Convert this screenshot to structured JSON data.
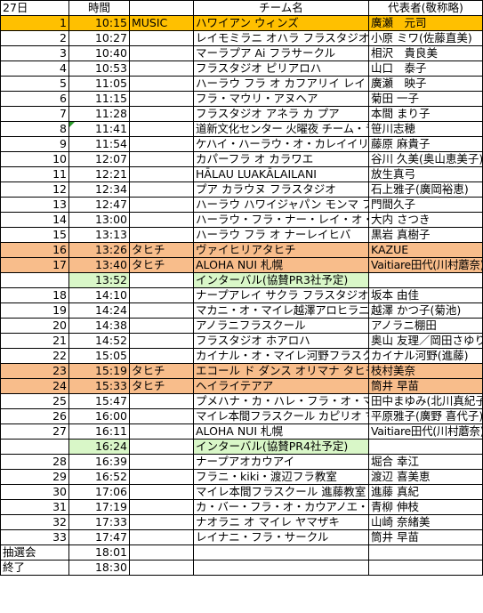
{
  "header": {
    "day": "27日",
    "time": "時間",
    "team": "チーム名",
    "rep": "代表者(敬称略)"
  },
  "colors": {
    "orange_highlight": "#ffc000",
    "tahichi": "#f8bd8b",
    "interval": "#d9f7c8"
  },
  "rows": [
    {
      "no": "1",
      "time": "10:15",
      "cat": "MUSIC",
      "team": "ハワイアン ウィンズ",
      "rep": "廣瀬　元司",
      "style": "top",
      "tsize": "",
      "rsize": ""
    },
    {
      "no": "2",
      "time": "10:27",
      "cat": "",
      "team": "レイモミラニ オハラ フラスタジオ",
      "rep": "小原 ミワ(佐藤直美)",
      "style": "",
      "tsize": "",
      "rsize": "sm"
    },
    {
      "no": "3",
      "time": "10:40",
      "cat": "",
      "team": "マーラプア Ai フラサークル",
      "rep": "相沢　貴良美",
      "style": "",
      "tsize": "",
      "rsize": ""
    },
    {
      "no": "4",
      "time": "10:53",
      "cat": "",
      "team": "フラスタジオ  ピリアロハ",
      "rep": "山口　泰子",
      "style": "",
      "tsize": "",
      "rsize": ""
    },
    {
      "no": "5",
      "time": "11:05",
      "cat": "",
      "team": "ハーラウ フラ オ カフアリイ レイ オハナ",
      "rep": "廣瀬　映子",
      "style": "",
      "tsize": "sm",
      "rsize": ""
    },
    {
      "no": "6",
      "time": "11:15",
      "cat": "",
      "team": "フラ・マウリ・アヌヘア",
      "rep": "菊田 一子",
      "style": "",
      "tsize": "",
      "rsize": ""
    },
    {
      "no": "7",
      "time": "11:28",
      "cat": "",
      "team": "フラスタジオ アネラ カ プア",
      "rep": "本間 まり子",
      "style": "",
      "tsize": "",
      "rsize": ""
    },
    {
      "no": "8",
      "time": "11:41",
      "cat": "",
      "team": "道新文化センター 火曜夜 チーム・ラウハラ",
      "rep": "笹川志穂",
      "style": "mark",
      "tsize": "xs",
      "rsize": ""
    },
    {
      "no": "9",
      "time": "11:54",
      "cat": "",
      "team": "ケハイ・ハーラウ・オ・カレイイリマオカラニ・パー・オ・ラパ・カヒコ",
      "rep": "藤原 麻貴子",
      "style": "",
      "tsize": "xs",
      "rsize": ""
    },
    {
      "no": "10",
      "time": "12:07",
      "cat": "",
      "team": "カパーフラ オ カラワエ",
      "rep": "谷川 久美(奥山恵美子)",
      "style": "",
      "tsize": "",
      "rsize": "sm"
    },
    {
      "no": "11",
      "time": "12:21",
      "cat": "",
      "team": "HĀLAU LUAKĀLAILANI",
      "rep": "放生真弓",
      "style": "",
      "tsize": "",
      "rsize": ""
    },
    {
      "no": "12",
      "time": "12:34",
      "cat": "",
      "team": "プア カラウヌ フラスタジオ",
      "rep": "石上雅子(廣岡裕恵)",
      "style": "",
      "tsize": "",
      "rsize": "sm"
    },
    {
      "no": "13",
      "time": "12:47",
      "cat": "",
      "team": "ハーラウ ハワイジャパン モンマ フラ グループ",
      "rep": "門間久子",
      "style": "",
      "tsize": "sm",
      "rsize": ""
    },
    {
      "no": "14",
      "time": "13:00",
      "cat": "",
      "team": "ハーラウ・フラ・ナー・レイ・オ・ホクロア",
      "rep": "大内 さつき",
      "style": "",
      "tsize": "",
      "rsize": ""
    },
    {
      "no": "15",
      "time": "13:13",
      "cat": "",
      "team": "ハーラウ フラ オ ナーレイヒバ",
      "rep": "黒岩 真樹子",
      "style": "",
      "tsize": "",
      "rsize": ""
    },
    {
      "no": "16",
      "time": "13:26",
      "cat": "タヒチ",
      "team": "ヴァイヒリアタヒチ",
      "rep": "KAZUE",
      "style": "orange",
      "tsize": "",
      "rsize": ""
    },
    {
      "no": "17",
      "time": "13:40",
      "cat": "タヒチ",
      "team": "ALOHA NUI 札幌",
      "rep": "Vaitiare田代(川村蘑奈)",
      "style": "orange",
      "tsize": "",
      "rsize": "xs"
    },
    {
      "no": "",
      "time": "13:52",
      "cat": "",
      "team": "インターバル(協賛PR3社予定)",
      "rep": "",
      "style": "green",
      "tsize": "",
      "rsize": ""
    },
    {
      "no": "18",
      "time": "14:10",
      "cat": "",
      "team": "ナープアレイ サクラ フラスタジオ",
      "rep": "坂本 由佳",
      "style": "",
      "tsize": "",
      "rsize": ""
    },
    {
      "no": "19",
      "time": "14:24",
      "cat": "",
      "team": "マカニ・オ・マイレ越澤アロヒラニ＆菊池敏華ホク・アロハ",
      "rep": "越澤 かつ子(菊池)",
      "style": "",
      "tsize": "xs",
      "rsize": ""
    },
    {
      "no": "20",
      "time": "14:38",
      "cat": "",
      "team": "アノラニフラスクール",
      "rep": "アノラニ棚田",
      "style": "",
      "tsize": "",
      "rsize": ""
    },
    {
      "no": "21",
      "time": "14:52",
      "cat": "",
      "team": "フラスタジオ ホアロハ",
      "rep": "奥山 友理／岡田さゆり",
      "style": "",
      "tsize": "",
      "rsize": "sm"
    },
    {
      "no": "22",
      "time": "15:05",
      "cat": "",
      "team": "カイナル・オ・マイレ河野フラスクール",
      "rep": "カイナル河野(進藤)",
      "style": "",
      "tsize": "",
      "rsize": "sm"
    },
    {
      "no": "23",
      "time": "15:19",
      "cat": "タヒチ",
      "team": "エコール ド ダンス オリマナ タヒチ",
      "rep": "枝村美奈",
      "style": "orange",
      "tsize": "",
      "rsize": ""
    },
    {
      "no": "24",
      "time": "15:33",
      "cat": "タヒチ",
      "team": "ヘイライテアア",
      "rep": "筒井 早苗",
      "style": "orange",
      "tsize": "",
      "rsize": ""
    },
    {
      "no": "25",
      "time": "15:47",
      "cat": "",
      "team": "プメハナ・カ・ハレ・フラ・オ・マーヘアラニ",
      "rep": "田中まゆみ(北川真紀子)",
      "style": "",
      "tsize": "sm",
      "rsize": "sm"
    },
    {
      "no": "26",
      "time": "16:00",
      "cat": "",
      "team": "マイレ本間フラスクール カピリオ マイレ 平原教室 レイナ アモ ピカケ",
      "rep": "平原雅子(廣野 喜代子)",
      "style": "",
      "tsize": "xs",
      "rsize": "sm"
    },
    {
      "no": "27",
      "time": "16:11",
      "cat": "",
      "team": "ALOHA NUI 札幌",
      "rep": "Vaitiare田代(川村蘑奈)",
      "style": "",
      "tsize": "",
      "rsize": "xs"
    },
    {
      "no": "",
      "time": "16:24",
      "cat": "",
      "team": "インターバル(協賛PR4社予定)",
      "rep": "",
      "style": "green",
      "tsize": "",
      "rsize": ""
    },
    {
      "no": "28",
      "time": "16:39",
      "cat": "",
      "team": "ナープアオカウアイ",
      "rep": "堀合 幸江",
      "style": "",
      "tsize": "",
      "rsize": ""
    },
    {
      "no": "29",
      "time": "16:52",
      "cat": "",
      "team": "フラニ・kiki・渡辺フラ教室",
      "rep": "渡辺 喜美恵",
      "style": "",
      "tsize": "",
      "rsize": ""
    },
    {
      "no": "30",
      "time": "17:06",
      "cat": "",
      "team": "マイレ本間フラスクール 進藤教室",
      "rep": "進藤 真紀",
      "style": "",
      "tsize": "",
      "rsize": ""
    },
    {
      "no": "31",
      "time": "17:19",
      "cat": "",
      "team": "カ・バー・フラ・オ・カウアノエ・オ・ヴァーヒラ・サッポロ",
      "rep": "青柳 伸枝",
      "style": "",
      "tsize": "xs",
      "rsize": ""
    },
    {
      "no": "32",
      "time": "17:33",
      "cat": "",
      "team": "ナオラニ オ マイレ ヤマザキ",
      "rep": "山崎 奈緒美",
      "style": "",
      "tsize": "",
      "rsize": ""
    },
    {
      "no": "33",
      "time": "17:47",
      "cat": "",
      "team": "レイナニ・フラ・サークル",
      "rep": "筒井 早苗",
      "style": "",
      "tsize": "",
      "rsize": ""
    },
    {
      "no": "抽選会",
      "time": "18:01",
      "cat": "",
      "team": "",
      "rep": "",
      "style": "left",
      "tsize": "",
      "rsize": ""
    },
    {
      "no": "終了",
      "time": "18:30",
      "cat": "",
      "team": "",
      "rep": "",
      "style": "left",
      "tsize": "",
      "rsize": ""
    }
  ]
}
